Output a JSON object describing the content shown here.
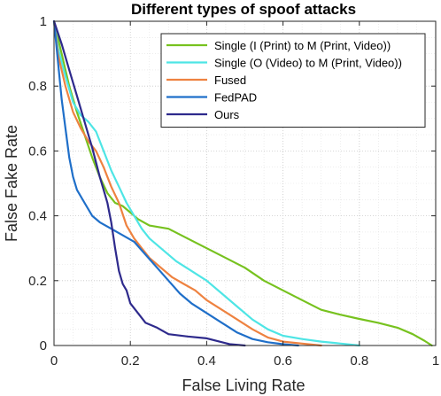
{
  "chart_data": {
    "type": "line",
    "title": "Different types of spoof attacks",
    "xlabel": "False Living Rate",
    "ylabel": "False Fake Rate",
    "xlim": [
      0,
      1
    ],
    "ylim": [
      0,
      1
    ],
    "xticks": [
      "0",
      "0.2",
      "0.4",
      "0.6",
      "0.8",
      "1"
    ],
    "yticks": [
      "0",
      "0.2",
      "0.4",
      "0.6",
      "0.8",
      "1"
    ],
    "grid": true,
    "legend_position": "top-right",
    "series": [
      {
        "name": "Single (I (Print) to M (Print, Video))",
        "color": "#77c21f",
        "points": [
          [
            0,
            1
          ],
          [
            0.02,
            0.9
          ],
          [
            0.04,
            0.8
          ],
          [
            0.06,
            0.72
          ],
          [
            0.08,
            0.65
          ],
          [
            0.1,
            0.58
          ],
          [
            0.12,
            0.52
          ],
          [
            0.14,
            0.47
          ],
          [
            0.16,
            0.44
          ],
          [
            0.18,
            0.43
          ],
          [
            0.2,
            0.41
          ],
          [
            0.22,
            0.39
          ],
          [
            0.25,
            0.37
          ],
          [
            0.3,
            0.36
          ],
          [
            0.35,
            0.33
          ],
          [
            0.4,
            0.3
          ],
          [
            0.45,
            0.27
          ],
          [
            0.5,
            0.24
          ],
          [
            0.55,
            0.2
          ],
          [
            0.6,
            0.17
          ],
          [
            0.65,
            0.14
          ],
          [
            0.7,
            0.11
          ],
          [
            0.75,
            0.095
          ],
          [
            0.8,
            0.082
          ],
          [
            0.85,
            0.07
          ],
          [
            0.9,
            0.055
          ],
          [
            0.94,
            0.035
          ],
          [
            0.97,
            0.015
          ],
          [
            0.99,
            0
          ]
        ]
      },
      {
        "name": "Single (O (Video) to M (Print, Video))",
        "color": "#4ee5e5",
        "points": [
          [
            0,
            1
          ],
          [
            0.01,
            0.92
          ],
          [
            0.03,
            0.83
          ],
          [
            0.05,
            0.75
          ],
          [
            0.07,
            0.71
          ],
          [
            0.09,
            0.69
          ],
          [
            0.11,
            0.66
          ],
          [
            0.13,
            0.6
          ],
          [
            0.15,
            0.54
          ],
          [
            0.17,
            0.49
          ],
          [
            0.19,
            0.44
          ],
          [
            0.21,
            0.4
          ],
          [
            0.23,
            0.36
          ],
          [
            0.25,
            0.33
          ],
          [
            0.28,
            0.3
          ],
          [
            0.32,
            0.26
          ],
          [
            0.36,
            0.23
          ],
          [
            0.4,
            0.2
          ],
          [
            0.44,
            0.16
          ],
          [
            0.48,
            0.12
          ],
          [
            0.52,
            0.08
          ],
          [
            0.56,
            0.05
          ],
          [
            0.6,
            0.03
          ],
          [
            0.65,
            0.02
          ],
          [
            0.7,
            0.012
          ],
          [
            0.76,
            0.005
          ],
          [
            0.8,
            0
          ]
        ]
      },
      {
        "name": "Fused",
        "color": "#ee8240",
        "points": [
          [
            0,
            1
          ],
          [
            0.01,
            0.9
          ],
          [
            0.03,
            0.8
          ],
          [
            0.05,
            0.72
          ],
          [
            0.07,
            0.67
          ],
          [
            0.09,
            0.63
          ],
          [
            0.11,
            0.6
          ],
          [
            0.13,
            0.55
          ],
          [
            0.15,
            0.49
          ],
          [
            0.17,
            0.44
          ],
          [
            0.19,
            0.37
          ],
          [
            0.21,
            0.33
          ],
          [
            0.23,
            0.3
          ],
          [
            0.25,
            0.27
          ],
          [
            0.28,
            0.24
          ],
          [
            0.31,
            0.21
          ],
          [
            0.34,
            0.19
          ],
          [
            0.37,
            0.17
          ],
          [
            0.4,
            0.14
          ],
          [
            0.44,
            0.11
          ],
          [
            0.48,
            0.08
          ],
          [
            0.52,
            0.05
          ],
          [
            0.56,
            0.025
          ],
          [
            0.6,
            0.012
          ],
          [
            0.65,
            0.006
          ],
          [
            0.7,
            0
          ]
        ]
      },
      {
        "name": "FedPAD",
        "color": "#1f6fc9",
        "points": [
          [
            0,
            1
          ],
          [
            0.01,
            0.88
          ],
          [
            0.02,
            0.76
          ],
          [
            0.03,
            0.67
          ],
          [
            0.04,
            0.58
          ],
          [
            0.05,
            0.52
          ],
          [
            0.06,
            0.48
          ],
          [
            0.08,
            0.44
          ],
          [
            0.1,
            0.4
          ],
          [
            0.12,
            0.38
          ],
          [
            0.15,
            0.36
          ],
          [
            0.18,
            0.34
          ],
          [
            0.21,
            0.32
          ],
          [
            0.24,
            0.28
          ],
          [
            0.27,
            0.24
          ],
          [
            0.3,
            0.2
          ],
          [
            0.33,
            0.16
          ],
          [
            0.36,
            0.13
          ],
          [
            0.4,
            0.1
          ],
          [
            0.44,
            0.07
          ],
          [
            0.48,
            0.04
          ],
          [
            0.52,
            0.02
          ],
          [
            0.56,
            0.01
          ],
          [
            0.6,
            0.004
          ],
          [
            0.64,
            0
          ]
        ]
      },
      {
        "name": "Ours",
        "color": "#2e2a8c",
        "points": [
          [
            0,
            1
          ],
          [
            0.02,
            0.93
          ],
          [
            0.04,
            0.85
          ],
          [
            0.06,
            0.77
          ],
          [
            0.08,
            0.69
          ],
          [
            0.1,
            0.61
          ],
          [
            0.12,
            0.52
          ],
          [
            0.14,
            0.44
          ],
          [
            0.15,
            0.38
          ],
          [
            0.16,
            0.3
          ],
          [
            0.17,
            0.23
          ],
          [
            0.18,
            0.19
          ],
          [
            0.19,
            0.17
          ],
          [
            0.2,
            0.13
          ],
          [
            0.22,
            0.1
          ],
          [
            0.24,
            0.07
          ],
          [
            0.27,
            0.055
          ],
          [
            0.3,
            0.035
          ],
          [
            0.35,
            0.028
          ],
          [
            0.4,
            0.022
          ],
          [
            0.43,
            0.013
          ],
          [
            0.46,
            0.004
          ],
          [
            0.5,
            0
          ]
        ]
      }
    ]
  }
}
